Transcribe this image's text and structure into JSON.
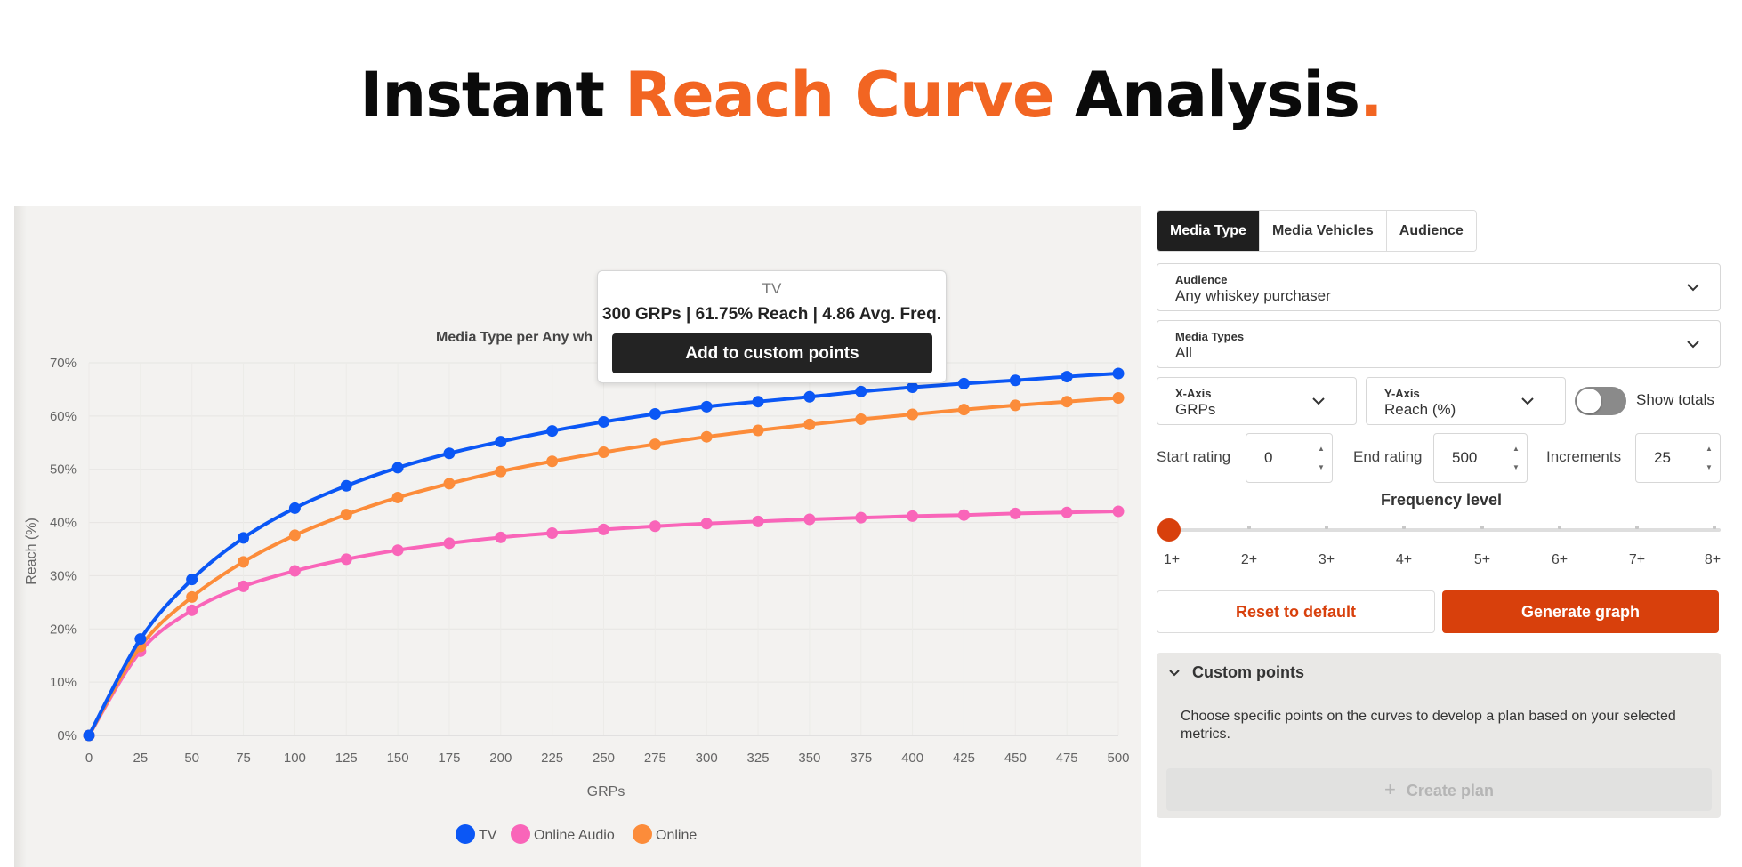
{
  "headline": {
    "part1": "Instant ",
    "part2": "Reach Curve",
    "part3": " Analysis",
    "part4": ".",
    "accent_color": "#f26522"
  },
  "chart_data": {
    "type": "line",
    "title": "Media Type per Any wh",
    "xlabel": "GRPs",
    "ylabel": "Reach (%)",
    "x": [
      0,
      25,
      50,
      75,
      100,
      125,
      150,
      175,
      200,
      225,
      250,
      275,
      300,
      325,
      350,
      375,
      400,
      425,
      450,
      475,
      500
    ],
    "ylim": [
      0,
      70
    ],
    "xlim": [
      0,
      500
    ],
    "y_ticks": [
      "0%",
      "10%",
      "20%",
      "30%",
      "40%",
      "50%",
      "60%",
      "70%"
    ],
    "x_ticks": [
      "0",
      "25",
      "50",
      "75",
      "100",
      "125",
      "150",
      "175",
      "200",
      "225",
      "250",
      "275",
      "300",
      "325",
      "350",
      "375",
      "400",
      "425",
      "450",
      "475",
      "500"
    ],
    "grid": true,
    "legend_position": "bottom-center",
    "series": [
      {
        "name": "TV",
        "color": "#0b57f5",
        "values": [
          0,
          18.1,
          29.3,
          37.1,
          42.7,
          46.9,
          50.3,
          53.0,
          55.2,
          57.2,
          58.9,
          60.4,
          61.75,
          62.7,
          63.6,
          64.6,
          65.4,
          66.1,
          66.7,
          67.4,
          68.0
        ]
      },
      {
        "name": "Online Audio",
        "color": "#f965b9",
        "values": [
          0,
          15.8,
          23.5,
          28.0,
          30.9,
          33.1,
          34.8,
          36.1,
          37.2,
          38.0,
          38.7,
          39.3,
          39.8,
          40.2,
          40.6,
          40.9,
          41.2,
          41.4,
          41.7,
          41.9,
          42.1
        ]
      },
      {
        "name": "Online",
        "color": "#fc8c3a",
        "values": [
          0,
          16.7,
          26.0,
          32.6,
          37.6,
          41.5,
          44.7,
          47.3,
          49.6,
          51.5,
          53.2,
          54.7,
          56.1,
          57.3,
          58.4,
          59.4,
          60.3,
          61.2,
          62.0,
          62.7,
          63.4
        ]
      }
    ]
  },
  "tooltip": {
    "series": "TV",
    "line": "300 GRPs | 61.75% Reach | 4.86 Avg. Freq.",
    "button": "Add to custom points"
  },
  "tabs": [
    "Media Type",
    "Media Vehicles",
    "Audience"
  ],
  "audience": {
    "label": "Audience",
    "value": "Any whiskey purchaser"
  },
  "media_types": {
    "label": "Media Types",
    "value": "All"
  },
  "x_axis": {
    "label": "X-Axis",
    "value": "GRPs"
  },
  "y_axis": {
    "label": "Y-Axis",
    "value": "Reach (%)"
  },
  "show_totals": {
    "label": "Show totals",
    "on": false
  },
  "start_rating": {
    "label": "Start rating",
    "value": "0"
  },
  "end_rating": {
    "label": "End rating",
    "value": "500"
  },
  "increments": {
    "label": "Increments",
    "value": "25"
  },
  "frequency": {
    "title": "Frequency level",
    "levels": [
      "1+",
      "2+",
      "3+",
      "4+",
      "5+",
      "6+",
      "7+",
      "8+"
    ],
    "selected": "1+"
  },
  "buttons": {
    "reset": "Reset to default",
    "generate": "Generate graph"
  },
  "custom_points": {
    "title": "Custom points",
    "description": "Choose specific points on the curves to develop a plan based on your selected metrics.",
    "create_plan": "Create plan"
  }
}
